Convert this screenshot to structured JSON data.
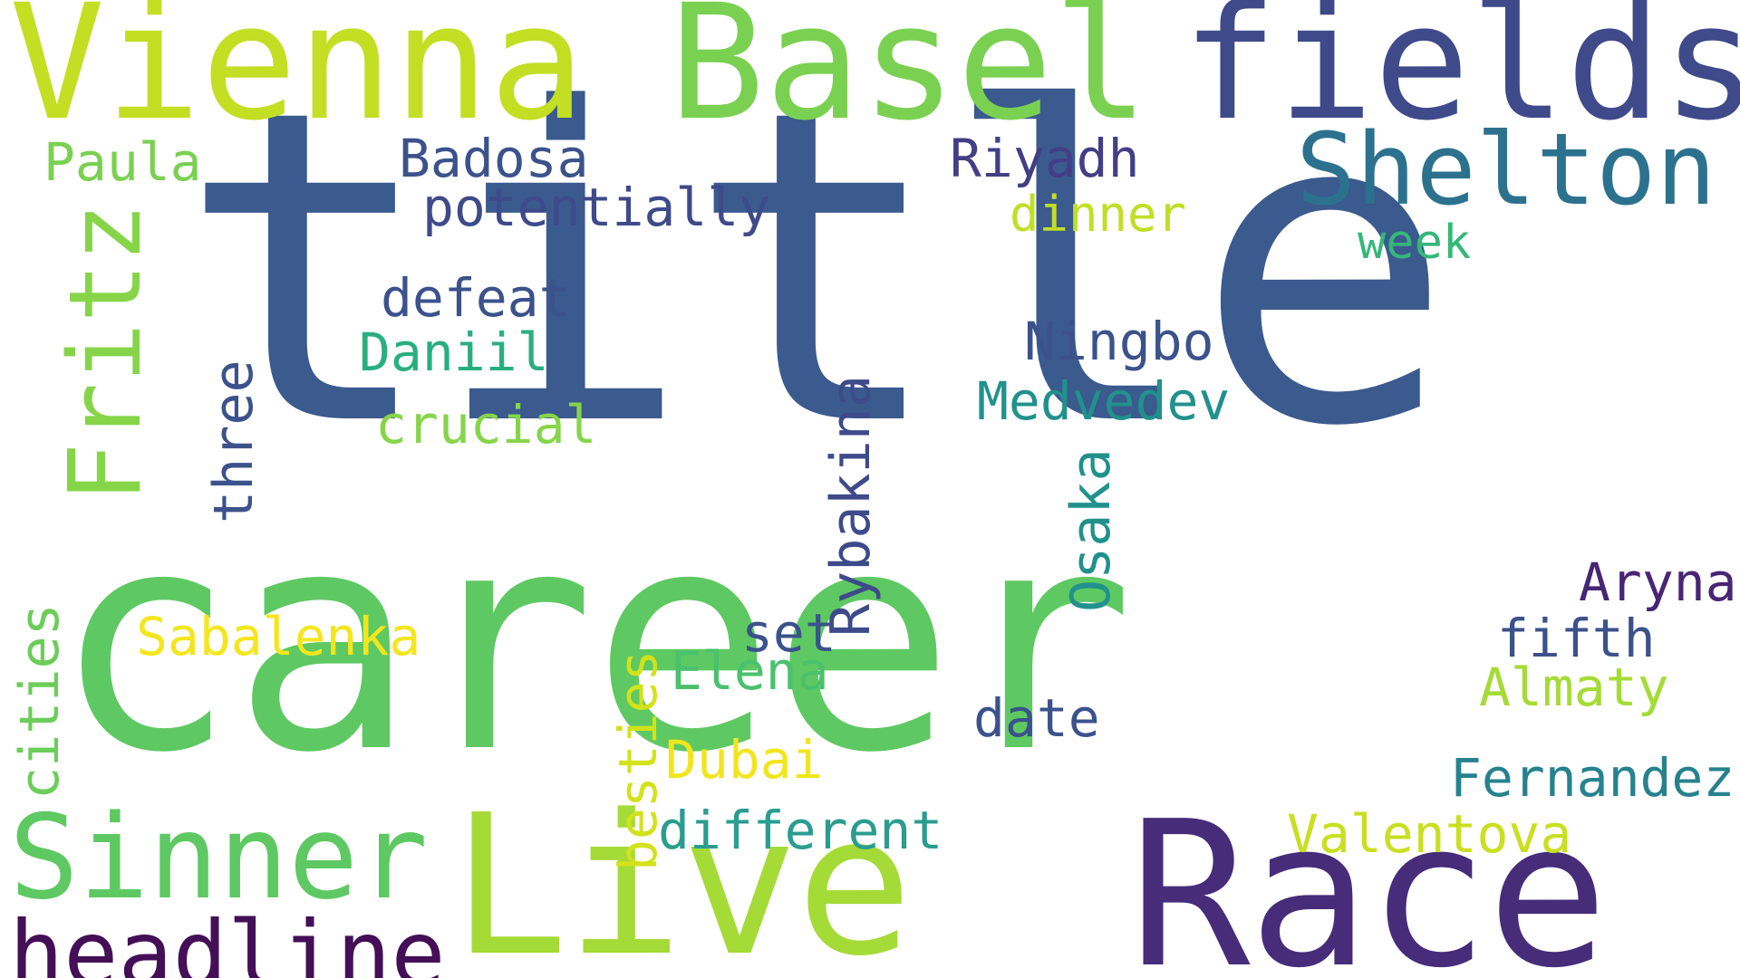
{
  "words": [
    {
      "text": "title",
      "color": "#3b5a8e"
    },
    {
      "text": "career",
      "color": "#5ec962"
    },
    {
      "text": "Live",
      "color": "#a5db36"
    },
    {
      "text": "Race",
      "color": "#472c7a"
    },
    {
      "text": "Vienna",
      "color": "#c2df23"
    },
    {
      "text": "Basel",
      "color": "#7ad151"
    },
    {
      "text": "fields",
      "color": "#3e4a89"
    },
    {
      "text": "Shelton",
      "color": "#2c728e"
    },
    {
      "text": "Sinner",
      "color": "#5ec962"
    },
    {
      "text": "headline",
      "color": "#440f56"
    },
    {
      "text": "Fritz",
      "color": "#86d549"
    },
    {
      "text": "Paula",
      "color": "#7ad151"
    },
    {
      "text": "Badosa",
      "color": "#3b528b"
    },
    {
      "text": "potentially",
      "color": "#3e4a89"
    },
    {
      "text": "Riyadh",
      "color": "#433e85"
    },
    {
      "text": "dinner",
      "color": "#c0df25"
    },
    {
      "text": "week",
      "color": "#35b779"
    },
    {
      "text": "defeat",
      "color": "#3b528b"
    },
    {
      "text": "Daniil",
      "color": "#29af7f"
    },
    {
      "text": "crucial",
      "color": "#86d549"
    },
    {
      "text": "three",
      "color": "#3b528b"
    },
    {
      "text": "Ningbo",
      "color": "#3b528b"
    },
    {
      "text": "Medvedev",
      "color": "#21918c"
    },
    {
      "text": "Rybakina",
      "color": "#3e4a89"
    },
    {
      "text": "Osaka",
      "color": "#21918c"
    },
    {
      "text": "Aryna",
      "color": "#482575"
    },
    {
      "text": "fifth",
      "color": "#3b528b"
    },
    {
      "text": "Almaty",
      "color": "#a5db36"
    },
    {
      "text": "Sabalenka",
      "color": "#f4e61e"
    },
    {
      "text": "set",
      "color": "#3b528b"
    },
    {
      "text": "Elena",
      "color": "#4ac16d"
    },
    {
      "text": "date",
      "color": "#3b528b"
    },
    {
      "text": "cities",
      "color": "#6ccd5a"
    },
    {
      "text": "besties",
      "color": "#d2e21b"
    },
    {
      "text": "Dubai",
      "color": "#f1e51d"
    },
    {
      "text": "different",
      "color": "#2a9d8f"
    },
    {
      "text": "Fernandez",
      "color": "#26828e"
    },
    {
      "text": "Valentova",
      "color": "#c8e020"
    }
  ]
}
